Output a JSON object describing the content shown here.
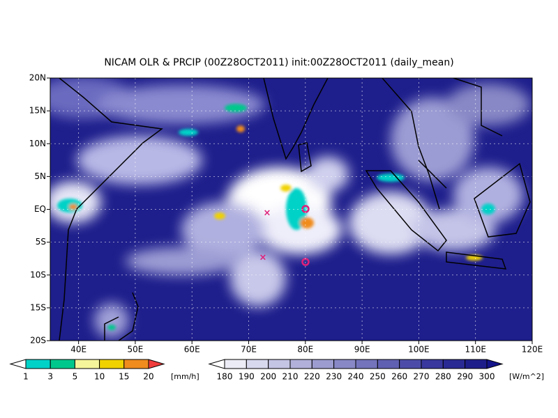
{
  "chart_data": {
    "type": "map",
    "title": "NICAM OLR & PRCIP (00Z28OCT2011) init:00Z28OCT2011 (daily_mean)",
    "xlim": [
      35,
      120
    ],
    "ylim": [
      -20,
      20
    ],
    "xticks": [
      {
        "value": 40,
        "label": "40E"
      },
      {
        "value": 50,
        "label": "50E"
      },
      {
        "value": 60,
        "label": "60E"
      },
      {
        "value": 70,
        "label": "70E"
      },
      {
        "value": 80,
        "label": "80E"
      },
      {
        "value": 90,
        "label": "90E"
      },
      {
        "value": 100,
        "label": "100E"
      },
      {
        "value": 110,
        "label": "110E"
      },
      {
        "value": 120,
        "label": "120E"
      }
    ],
    "yticks": [
      {
        "value": -20,
        "label": "20S"
      },
      {
        "value": -15,
        "label": "15S"
      },
      {
        "value": -10,
        "label": "10S"
      },
      {
        "value": -5,
        "label": "5S"
      },
      {
        "value": 0,
        "label": "EQ"
      },
      {
        "value": 5,
        "label": "5N"
      },
      {
        "value": 10,
        "label": "10N"
      },
      {
        "value": 15,
        "label": "15N"
      },
      {
        "value": 20,
        "label": "20N"
      }
    ],
    "grid": true,
    "colorbars": [
      {
        "levels": [
          1,
          3,
          5,
          10,
          15,
          20
        ],
        "unit": "[mm/h]",
        "colors": [
          "#ffffff",
          "#00d2c8",
          "#00c88c",
          "#f5f59b",
          "#f0d200",
          "#f08c1e",
          "#f03c3c"
        ]
      },
      {
        "levels": [
          180,
          190,
          200,
          210,
          220,
          230,
          240,
          250,
          260,
          270,
          280,
          290,
          300
        ],
        "unit": "[W/m^2]",
        "colors": [
          "#ffffff",
          "#ececf6",
          "#d8d8ee",
          "#c4c4e4",
          "#b0b0da",
          "#9c9cd0",
          "#8888c6",
          "#7474bc",
          "#6060b2",
          "#4c4ca8",
          "#38389e",
          "#2a2a94",
          "#1e1e8a",
          "#14148a"
        ]
      }
    ]
  }
}
